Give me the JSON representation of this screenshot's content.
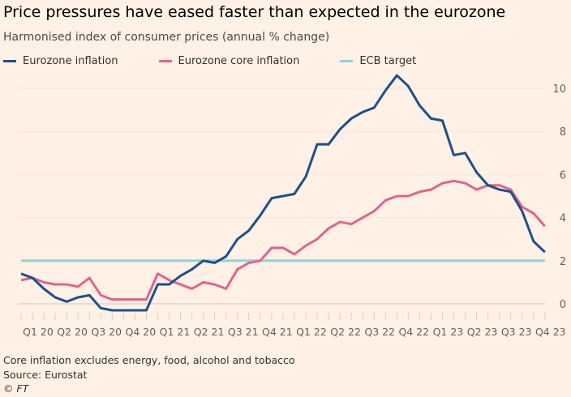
{
  "title": "Price pressures have eased faster than expected in the eurozone",
  "subtitle": "Harmonised index of consumer prices (annual % change)",
  "footnote": "Core inflation excludes energy, food, alcohol and tobacco",
  "source": "Source: Eurostat",
  "credit": "© FT",
  "chart_data": {
    "type": "line",
    "x_start": "2020-01",
    "x_frequency": "monthly",
    "xtick_labels": [
      "Q1 20",
      "Q2 20",
      "Q3 20",
      "Q4 20",
      "Q1 21",
      "Q2 21",
      "Q3 21",
      "Q4 21",
      "Q1 22",
      "Q2 22",
      "Q3 22",
      "Q4 22",
      "Q1 23",
      "Q2 23",
      "Q3 23",
      "Q4 23"
    ],
    "yticks": [
      0,
      2,
      4,
      6,
      8,
      10
    ],
    "ylim": [
      -0.5,
      10.8
    ],
    "grid": true,
    "y_axis_side": "right",
    "legend_placement": "top-left",
    "series": [
      {
        "name": "Eurozone inflation",
        "color": "#1d4f8c",
        "values": [
          1.4,
          1.2,
          0.7,
          0.3,
          0.1,
          0.3,
          0.4,
          -0.2,
          -0.3,
          -0.3,
          -0.3,
          -0.3,
          0.9,
          0.9,
          1.3,
          1.6,
          2.0,
          1.9,
          2.2,
          3.0,
          3.4,
          4.1,
          4.9,
          5.0,
          5.1,
          5.9,
          7.4,
          7.4,
          8.1,
          8.6,
          8.9,
          9.1,
          9.9,
          10.6,
          10.1,
          9.2,
          8.6,
          8.5,
          6.9,
          7.0,
          6.1,
          5.5,
          5.3,
          5.2,
          4.3,
          2.9,
          2.4
        ]
      },
      {
        "name": "Eurozone core inflation",
        "color": "#e0648c",
        "values": [
          1.1,
          1.2,
          1.0,
          0.9,
          0.9,
          0.8,
          1.2,
          0.4,
          0.2,
          0.2,
          0.2,
          0.2,
          1.4,
          1.1,
          0.9,
          0.7,
          1.0,
          0.9,
          0.7,
          1.6,
          1.9,
          2.0,
          2.6,
          2.6,
          2.3,
          2.7,
          3.0,
          3.5,
          3.8,
          3.7,
          4.0,
          4.3,
          4.8,
          5.0,
          5.0,
          5.2,
          5.3,
          5.6,
          5.7,
          5.6,
          5.3,
          5.5,
          5.5,
          5.3,
          4.5,
          4.2,
          3.6
        ]
      },
      {
        "name": "ECB target",
        "color": "#8ed3db",
        "values": [
          2
        ]
      }
    ]
  }
}
